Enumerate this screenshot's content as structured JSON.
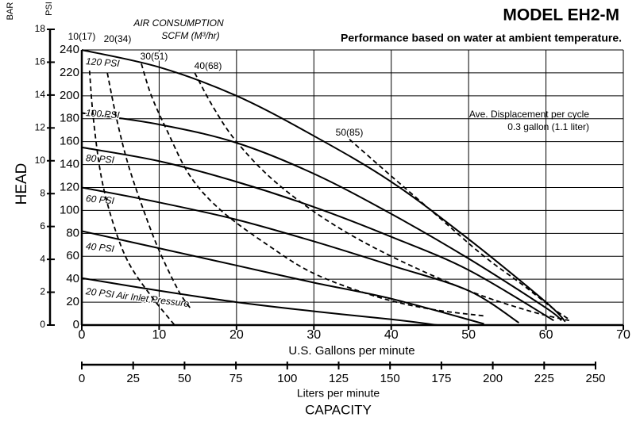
{
  "chart_data": {
    "type": "line",
    "title": "MODEL EH2-M",
    "subtitle": "Performance based on water at ambient temperature.",
    "annotations": [
      "AIR CONSUMPTION",
      "SCFM (M³/hr)",
      "Ave. Displacement per cycle",
      "0.3 gallon (1.1 liter)"
    ],
    "x_label": "U.S. Gallons per minute",
    "x2_label": "Liters per minute",
    "x_title": "CAPACITY",
    "y_label": "HEAD",
    "y_unit": "PSI",
    "y2_unit": "BAR",
    "xlim": [
      0,
      70
    ],
    "xticks": [
      0,
      10,
      20,
      30,
      40,
      50,
      60,
      70
    ],
    "x2lim": [
      0,
      250
    ],
    "x2ticks": [
      0,
      25,
      50,
      75,
      100,
      125,
      150,
      175,
      200,
      225,
      250
    ],
    "ylim": [
      0,
      240
    ],
    "yticks": [
      0,
      20,
      40,
      60,
      80,
      100,
      120,
      140,
      160,
      180,
      200,
      220,
      240
    ],
    "y2lim": [
      0,
      18
    ],
    "y2ticks": [
      0,
      2,
      4,
      6,
      8,
      10,
      12,
      14,
      16,
      18
    ],
    "grid": true,
    "color": "#000000",
    "series": [
      {
        "name": "120 PSI",
        "style": "solid",
        "x": [
          0,
          10,
          20,
          30,
          40,
          50,
          60,
          62.5
        ],
        "values": [
          240,
          225,
          200,
          165,
          125,
          75,
          20,
          3
        ]
      },
      {
        "name": "100 PSI",
        "style": "solid",
        "x": [
          0,
          10,
          20,
          30,
          40,
          50,
          60,
          62
        ],
        "values": [
          185,
          175,
          159,
          132,
          97,
          58,
          15,
          4
        ]
      },
      {
        "name": "80 PSI",
        "style": "solid",
        "x": [
          0,
          10,
          20,
          30,
          40,
          50,
          61
        ],
        "values": [
          155,
          143,
          125,
          103,
          77,
          48,
          4
        ]
      },
      {
        "name": "60 PSI",
        "style": "solid",
        "x": [
          0,
          10,
          20,
          30,
          40,
          50,
          56.5
        ],
        "values": [
          120,
          107,
          92,
          73,
          52,
          30,
          2
        ]
      },
      {
        "name": "40 PSI",
        "style": "solid",
        "x": [
          0,
          10,
          20,
          30,
          40,
          52
        ],
        "values": [
          82,
          67,
          52,
          37,
          23,
          1
        ]
      },
      {
        "name": "20 PSI Air Inlet Pressure",
        "style": "solid",
        "x": [
          0,
          10,
          20,
          30,
          40,
          46
        ],
        "values": [
          41,
          30,
          20,
          12,
          5,
          0
        ]
      },
      {
        "name": "10(17)",
        "style": "dashed",
        "x": [
          1,
          1.5,
          2.5,
          4,
          6,
          9,
          12
        ],
        "values": [
          222,
          180,
          130,
          90,
          55,
          25,
          0
        ]
      },
      {
        "name": "20(34)",
        "style": "dashed",
        "x": [
          3.3,
          4.5,
          6,
          8,
          10,
          12.5,
          14
        ],
        "values": [
          220,
          180,
          140,
          100,
          65,
          30,
          15
        ]
      },
      {
        "name": "30(51)",
        "style": "dashed",
        "x": [
          7.7,
          9,
          11,
          14,
          18,
          24,
          30,
          38,
          45,
          52
        ],
        "values": [
          228,
          200,
          170,
          130,
          100,
          70,
          45,
          25,
          14,
          8
        ]
      },
      {
        "name": "40(68)",
        "style": "dashed",
        "x": [
          14.6,
          17,
          20,
          25,
          32,
          40,
          50,
          58,
          63
        ],
        "values": [
          220,
          190,
          160,
          125,
          90,
          60,
          30,
          12,
          4
        ]
      },
      {
        "name": "50(85)",
        "style": "dashed",
        "x": [
          34.6,
          40,
          46,
          52,
          57,
          61,
          63
        ],
        "values": [
          162,
          130,
          95,
          60,
          35,
          14,
          5
        ]
      }
    ]
  }
}
